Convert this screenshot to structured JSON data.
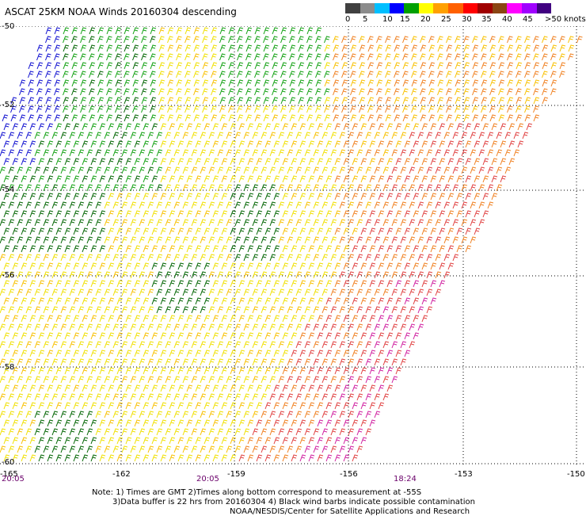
{
  "title": "ASCAT 25KM NOAA Winds 20160304 descending",
  "colorbar": {
    "labels": [
      "0",
      "5",
      "10",
      "15",
      "20",
      "25",
      "30",
      "35",
      "40",
      "45",
      ">50 knots"
    ],
    "colors": [
      "#404040",
      "#8c8c8c",
      "#00bfff",
      "#0000ff",
      "#00a000",
      "#ffff00",
      "#ffa000",
      "#ff6000",
      "#ff0000",
      "#a00000",
      "#8b4513",
      "#ff00ff",
      "#a000ff",
      "#400080"
    ]
  },
  "lat_labels": [
    "-50",
    "-52",
    "-54",
    "-56",
    "-58",
    "-60"
  ],
  "lon_labels": [
    "-165",
    "-162",
    "-159",
    "-156",
    "-153",
    "-150"
  ],
  "time_labels": [
    "20:05",
    "20:05",
    "18:24"
  ],
  "notes": [
    "Note: 1) Times are GMT 2)Times along bottom correspond to measurement at -55S",
    "3)Data buffer is 22 hrs from 20160304 4) Black wind barbs indicate possible contamination",
    "NOAA/NESDIS/Center for Satellite Applications and Research"
  ],
  "barb_colors": {
    "blue": "#1010d0",
    "green": "#10a010",
    "dark_green": "#006400",
    "yellow": "#f0e000",
    "gold": "#f8c000",
    "orange": "#f08020",
    "red": "#e04040",
    "magenta": "#d020a0"
  }
}
